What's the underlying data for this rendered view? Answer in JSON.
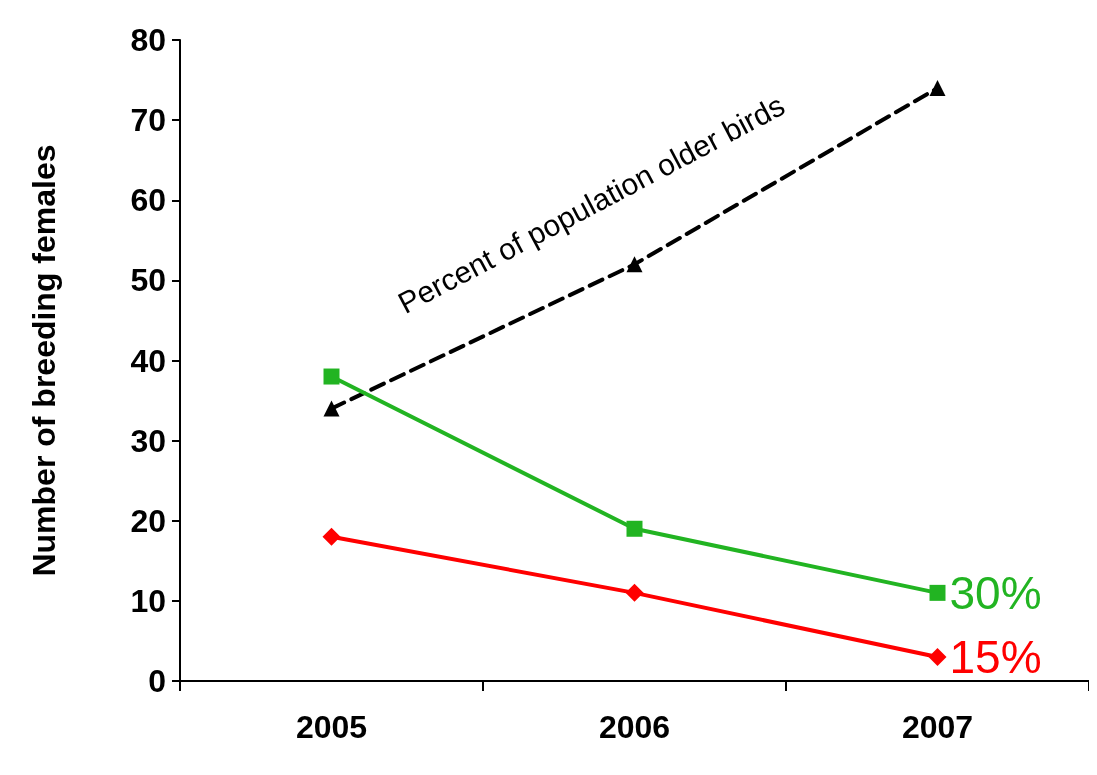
{
  "chart_data": {
    "type": "line",
    "ylabel": "Number of breeding females",
    "categories": [
      "2005",
      "2006",
      "2007"
    ],
    "series": [
      {
        "name": "Percent of population older birds",
        "color": "#000000",
        "values": [
          34,
          52,
          74
        ],
        "marker": "triangle",
        "line_style": "dashed"
      },
      {
        "name": "30%",
        "color": "#22b422",
        "values": [
          38,
          19,
          11
        ],
        "marker": "square",
        "line_style": "solid"
      },
      {
        "name": "15%",
        "color": "#ff0000",
        "values": [
          18,
          11,
          3
        ],
        "marker": "diamond",
        "line_style": "solid"
      }
    ],
    "ylim": [
      0,
      80
    ],
    "yticks": [
      0,
      10,
      20,
      30,
      40,
      50,
      60,
      70,
      80
    ],
    "grid": false,
    "legend": false
  }
}
